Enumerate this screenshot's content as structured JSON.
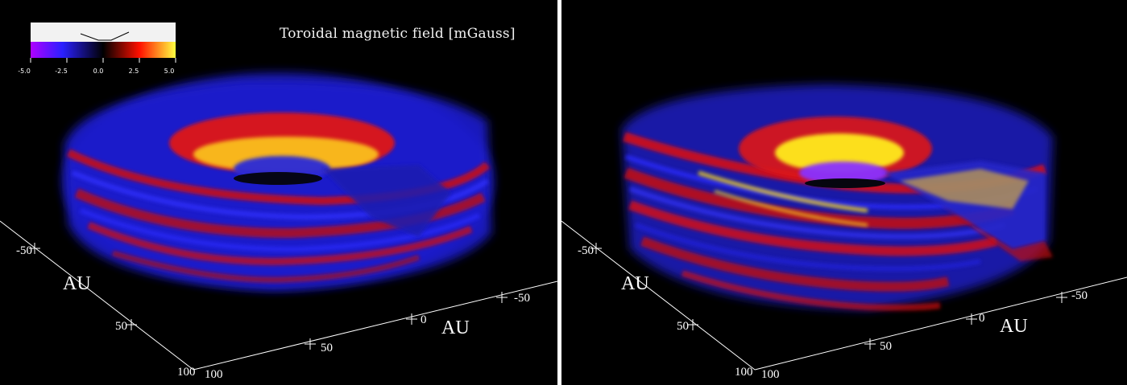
{
  "title": "Toroidal magnetic field [mGauss]",
  "colorbar": {
    "ticks": [
      "-5.0",
      "-2.5",
      "0.0",
      "2.5",
      "5.0"
    ],
    "colors": [
      "#b000ff",
      "#2a20ff",
      "#000000",
      "#ff1000",
      "#ffff40"
    ]
  },
  "axes": {
    "label": "AU",
    "left_ticks": [
      "-50",
      "50",
      "100"
    ],
    "front_ticks": [
      "100",
      "50",
      "0",
      "-50"
    ]
  },
  "palette": {
    "blue": "#1f1fe0",
    "red": "#e01010",
    "yellow": "#ffe81a",
    "violet": "#7a2bff"
  }
}
